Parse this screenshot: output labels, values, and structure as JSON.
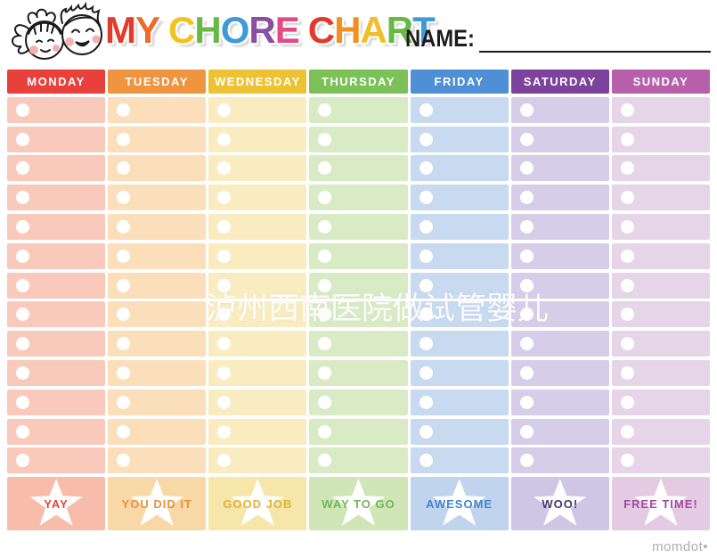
{
  "header": {
    "title_letters": [
      {
        "ch": "M",
        "color": "#e23b2e"
      },
      {
        "ch": "Y",
        "color": "#ee6b25"
      },
      {
        "ch": " ",
        "color": ""
      },
      {
        "ch": "C",
        "color": "#f2c21d"
      },
      {
        "ch": "H",
        "color": "#67b944"
      },
      {
        "ch": "O",
        "color": "#3f9ad8"
      },
      {
        "ch": "R",
        "color": "#8a4fa0"
      },
      {
        "ch": "E",
        "color": "#e14a86"
      },
      {
        "ch": " ",
        "color": ""
      },
      {
        "ch": "C",
        "color": "#e23b2e"
      },
      {
        "ch": "H",
        "color": "#f0901f"
      },
      {
        "ch": "A",
        "color": "#eebf2a"
      },
      {
        "ch": "R",
        "color": "#67b944"
      },
      {
        "ch": "T",
        "color": "#3f9ad8"
      }
    ],
    "name_label": "NAME:",
    "kids_illustration": "two-kids-faces"
  },
  "rows_per_day": 13,
  "days": [
    {
      "label": "MONDAY",
      "header_color": "#e8413c",
      "row_color": "#f9cabb",
      "banner_color": "#f7bcaa",
      "phrase": "YAY",
      "phrase_color": "#d8473d"
    },
    {
      "label": "TUESDAY",
      "header_color": "#f0953f",
      "row_color": "#fadfba",
      "banner_color": "#f9d8a8",
      "phrase": "YOU DID IT",
      "phrase_color": "#e8923c"
    },
    {
      "label": "WEDNESDAY",
      "header_color": "#edc335",
      "row_color": "#f9ecc0",
      "banner_color": "#f7e6aa",
      "phrase": "GOOD JOB",
      "phrase_color": "#e0b23a"
    },
    {
      "label": "THURSDAY",
      "header_color": "#7cc158",
      "row_color": "#d9ebc5",
      "banner_color": "#d0e6b7",
      "phrase": "WAY TO GO",
      "phrase_color": "#6cb858"
    },
    {
      "label": "FRIDAY",
      "header_color": "#4e8fd5",
      "row_color": "#c8daf0",
      "banner_color": "#c1d4ed",
      "phrase": "AWESOME",
      "phrase_color": "#4584c8"
    },
    {
      "label": "SATURDAY",
      "header_color": "#7d429c",
      "row_color": "#d6cde9",
      "banner_color": "#cfc5e5",
      "phrase": "WOO!",
      "phrase_color": "#443a6b"
    },
    {
      "label": "SUNDAY",
      "header_color": "#b75fab",
      "row_color": "#e6d5e8",
      "banner_color": "#e3cce3",
      "phrase": "FREE TIME!",
      "phrase_color": "#a4489e"
    }
  ],
  "watermark": "泸州西南医院做试管婴儿",
  "footer": {
    "brand": "momdot•"
  }
}
